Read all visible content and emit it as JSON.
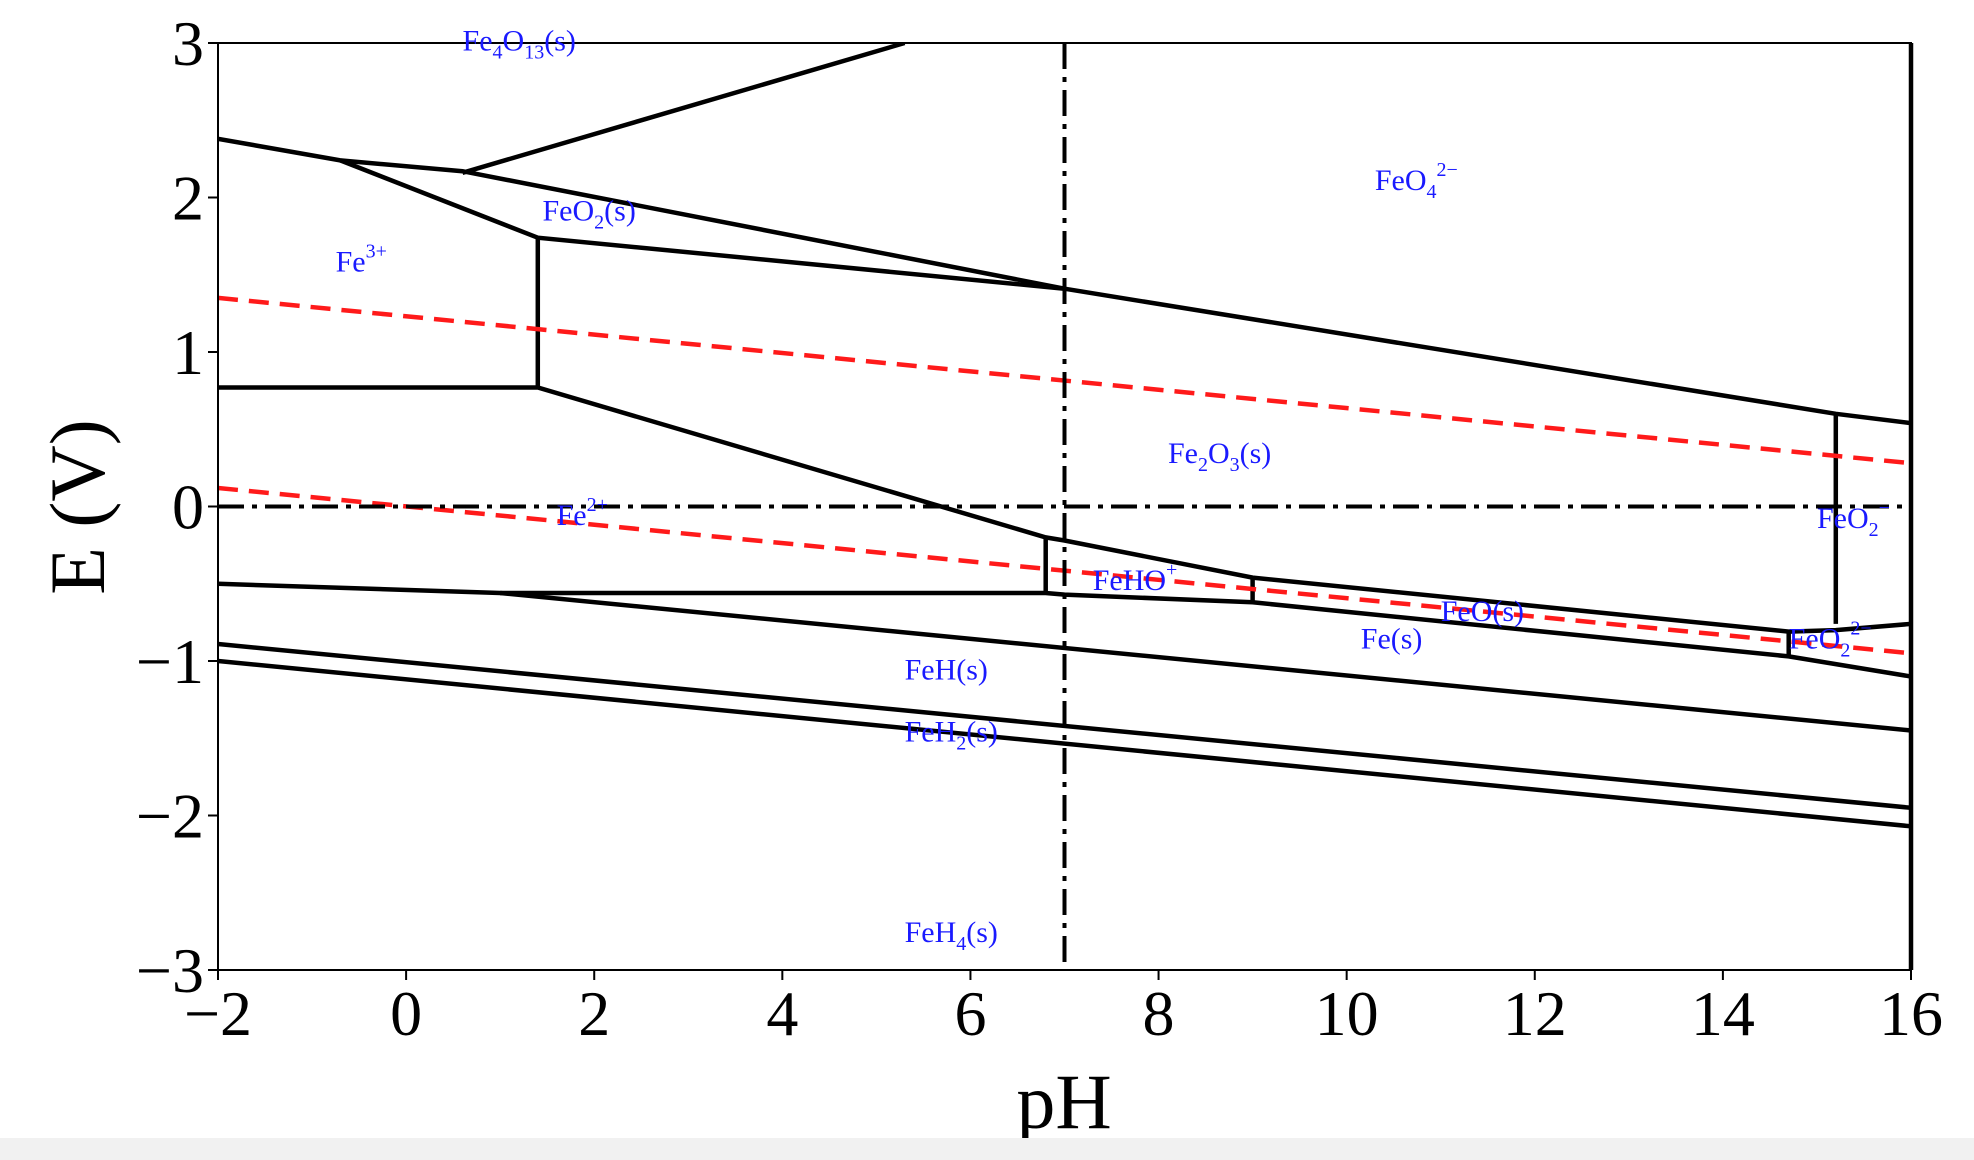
{
  "chart_data": {
    "type": "line",
    "title": "",
    "xlabel": "pH",
    "ylabel": "E (V)",
    "xlim": [
      -2,
      16
    ],
    "ylim": [
      -3,
      3
    ],
    "x_ticks": [
      {
        "value": -2,
        "label": "−2"
      },
      {
        "value": 0,
        "label": "0"
      },
      {
        "value": 2,
        "label": "2"
      },
      {
        "value": 4,
        "label": "4"
      },
      {
        "value": 6,
        "label": "6"
      },
      {
        "value": 8,
        "label": "8"
      },
      {
        "value": 10,
        "label": "10"
      },
      {
        "value": 12,
        "label": "12"
      },
      {
        "value": 14,
        "label": "14"
      },
      {
        "value": 16,
        "label": "16"
      }
    ],
    "y_ticks": [
      {
        "value": -3,
        "label": "−3"
      },
      {
        "value": -2,
        "label": "−2"
      },
      {
        "value": -1,
        "label": "−1"
      },
      {
        "value": 0,
        "label": "0"
      },
      {
        "value": 1,
        "label": "1"
      },
      {
        "value": 2,
        "label": "2"
      },
      {
        "value": 3,
        "label": "3"
      }
    ],
    "grid": false,
    "boundaries": [
      {
        "x": [
          -2,
          -0.7,
          0.6,
          7,
          15.2,
          16
        ],
        "y": [
          2.38,
          2.24,
          2.17,
          1.41,
          0.6,
          0.54
        ]
      },
      {
        "x": [
          0.6,
          5.3
        ],
        "y": [
          2.16,
          3.0
        ]
      },
      {
        "x": [
          -0.7,
          1.4,
          7
        ],
        "y": [
          2.24,
          1.74,
          1.41
        ]
      },
      {
        "x": [
          1.4,
          1.4
        ],
        "y": [
          1.74,
          0.77
        ]
      },
      {
        "x": [
          -2,
          1.4,
          6.8,
          7,
          9,
          14.7,
          15.2,
          16
        ],
        "y": [
          0.77,
          0.77,
          -0.2,
          -0.22,
          -0.46,
          -0.81,
          -0.8,
          -0.76
        ]
      },
      {
        "x": [
          15.2,
          15.2
        ],
        "y": [
          0.6,
          -0.76
        ]
      },
      {
        "x": [
          6.8,
          6.8
        ],
        "y": [
          -0.2,
          -0.56
        ]
      },
      {
        "x": [
          -2,
          1.0,
          6.8,
          7,
          9,
          14.7,
          16
        ],
        "y": [
          -0.5,
          -0.56,
          -0.56,
          -0.57,
          -0.62,
          -0.97,
          -1.1
        ]
      },
      {
        "x": [
          9,
          9
        ],
        "y": [
          -0.46,
          -0.62
        ]
      },
      {
        "x": [
          14.7,
          14.7
        ],
        "y": [
          -0.81,
          -0.97
        ]
      },
      {
        "x": [
          1.0,
          16
        ],
        "y": [
          -0.56,
          -1.45
        ]
      },
      {
        "x": [
          -2,
          16
        ],
        "y": [
          -0.89,
          -1.95
        ]
      },
      {
        "x": [
          -2,
          16
        ],
        "y": [
          -1.0,
          -2.07
        ]
      }
    ],
    "water_lines": [
      {
        "x": [
          -2,
          16
        ],
        "y": [
          1.35,
          0.28
        ]
      },
      {
        "x": [
          -2,
          16
        ],
        "y": [
          0.12,
          -0.95
        ]
      }
    ],
    "reference_lines": [
      {
        "orientation": "vertical",
        "value": 7
      },
      {
        "orientation": "horizontal",
        "value": 0
      }
    ],
    "annotations": [
      {
        "id": "fe4o13",
        "parts": [
          [
            "Fe",
            ""
          ],
          [
            "4",
            "sub"
          ],
          [
            "O",
            ""
          ],
          [
            "13",
            "sub"
          ],
          [
            "(s)",
            ""
          ]
        ],
        "x": 0.6,
        "y": 2.95,
        "color": "#1a1aff"
      },
      {
        "id": "feo4",
        "parts": [
          [
            "FeO",
            ""
          ],
          [
            "4",
            "sub"
          ],
          [
            "2−",
            "sup"
          ]
        ],
        "x": 10.3,
        "y": 2.05,
        "color": "#1a1aff"
      },
      {
        "id": "feo2s",
        "parts": [
          [
            "FeO",
            ""
          ],
          [
            "2",
            "sub"
          ],
          [
            "(s)",
            ""
          ]
        ],
        "x": 1.45,
        "y": 1.85,
        "color": "#1a1aff"
      },
      {
        "id": "fe3",
        "parts": [
          [
            "Fe",
            ""
          ],
          [
            "3+",
            "sup"
          ]
        ],
        "x": -0.75,
        "y": 1.52,
        "color": "#1a1aff"
      },
      {
        "id": "fe2o3",
        "parts": [
          [
            "Fe",
            ""
          ],
          [
            "2",
            "sub"
          ],
          [
            "O",
            ""
          ],
          [
            "3",
            "sub"
          ],
          [
            "(s)",
            ""
          ]
        ],
        "x": 8.1,
        "y": 0.28,
        "color": "#1a1aff"
      },
      {
        "id": "fe2",
        "parts": [
          [
            "Fe",
            ""
          ],
          [
            "2+",
            "sup"
          ]
        ],
        "x": 1.6,
        "y": -0.12,
        "color": "#1a1aff"
      },
      {
        "id": "feo2minus",
        "parts": [
          [
            "FeO",
            ""
          ],
          [
            "2",
            "sub"
          ],
          [
            "−",
            "sup"
          ]
        ],
        "x": 15.0,
        "y": -0.14,
        "color": "#1a1aff"
      },
      {
        "id": "feho",
        "parts": [
          [
            "FeHO",
            ""
          ],
          [
            "+",
            "sup"
          ]
        ],
        "x": 7.3,
        "y": -0.54,
        "color": "#1a1aff"
      },
      {
        "id": "feos",
        "parts": [
          [
            "FeO(s)",
            ""
          ]
        ],
        "x": 11.0,
        "y": -0.74,
        "color": "#1a1aff"
      },
      {
        "id": "fes",
        "parts": [
          [
            "Fe(s)",
            ""
          ]
        ],
        "x": 10.15,
        "y": -0.92,
        "color": "#1a1aff"
      },
      {
        "id": "feo22",
        "parts": [
          [
            "FeO",
            ""
          ],
          [
            "2",
            "sub"
          ],
          [
            "2−",
            "sup"
          ]
        ],
        "x": 14.7,
        "y": -0.92,
        "color": "#1a1aff"
      },
      {
        "id": "fehs",
        "parts": [
          [
            "FeH(s)",
            ""
          ]
        ],
        "x": 5.3,
        "y": -1.12,
        "color": "#1a1aff"
      },
      {
        "id": "feh2",
        "parts": [
          [
            "FeH",
            ""
          ],
          [
            "2",
            "sub"
          ],
          [
            "(s)",
            ""
          ]
        ],
        "x": 5.3,
        "y": -1.52,
        "color": "#1a1aff"
      },
      {
        "id": "feh4",
        "parts": [
          [
            "FeH",
            ""
          ],
          [
            "4",
            "sub"
          ],
          [
            "(s)",
            ""
          ]
        ],
        "x": 5.3,
        "y": -2.82,
        "color": "#1a1aff"
      }
    ],
    "colors": {
      "boundary": "#000000",
      "water": "#ff1a1a",
      "label": "#1a1aff",
      "reference": "#000000"
    }
  }
}
